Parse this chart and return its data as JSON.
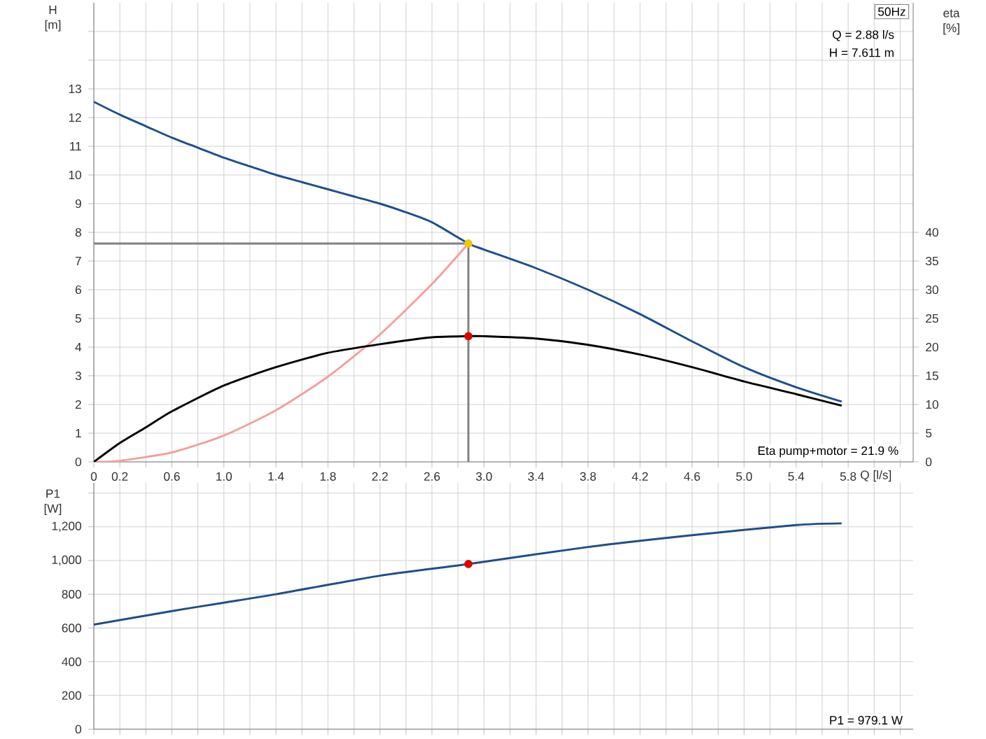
{
  "chart_data": [
    {
      "type": "line",
      "xlabel": "Q [l/s]",
      "ylabel": "H [m]",
      "y2label": "eta [%]",
      "xlim": [
        0,
        6.3
      ],
      "ylim": [
        0,
        16
      ],
      "y2lim": [
        0,
        80
      ],
      "xticks": [
        0,
        0.2,
        {
          "value": 0.4,
          "label": null
        },
        {
          "value": 0.6,
          "label": "0.6"
        },
        {
          "value": 0.8,
          "label": null
        },
        {
          "value": 1.0,
          "label": "1.0"
        },
        {
          "value": 1.2,
          "label": null
        },
        {
          "value": 1.4,
          "label": "1.4"
        },
        {
          "value": 1.6,
          "label": null
        },
        {
          "value": 1.8,
          "label": "1.8"
        },
        {
          "value": 2.0,
          "label": null
        },
        {
          "value": 2.2,
          "label": "2.2"
        },
        {
          "value": 2.4,
          "label": null
        },
        {
          "value": 2.6,
          "label": "2.6"
        },
        {
          "value": 2.8,
          "label": null
        },
        {
          "value": 3.0,
          "label": "3.0"
        },
        {
          "value": 3.2,
          "label": null
        },
        {
          "value": 3.4,
          "label": "3.4"
        },
        {
          "value": 3.6,
          "label": null
        },
        {
          "value": 3.8,
          "label": "3.8"
        },
        {
          "value": 4.0,
          "label": null
        },
        {
          "value": 4.2,
          "label": "4.2"
        },
        {
          "value": 4.4,
          "label": null
        },
        {
          "value": 4.6,
          "label": "4.6"
        },
        {
          "value": 4.8,
          "label": null
        },
        {
          "value": 5.0,
          "label": "5.0"
        },
        {
          "value": 5.2,
          "label": null
        },
        {
          "value": 5.4,
          "label": "5.4"
        },
        {
          "value": 5.6,
          "label": null
        },
        {
          "value": 5.8,
          "label": "5.8"
        },
        {
          "value": 6.0,
          "label": null
        },
        {
          "value": 6.2,
          "label": null
        }
      ],
      "yticks": [
        0,
        1,
        2,
        3,
        4,
        5,
        6,
        7,
        8,
        9,
        10,
        11,
        12,
        13,
        {
          "value": 14,
          "label": null
        },
        {
          "value": 15,
          "label": null
        }
      ],
      "y2ticks": [
        0,
        5,
        10,
        15,
        20,
        25,
        30,
        35,
        40
      ],
      "grid": true,
      "annotations": [
        "50Hz",
        "Q = 2.88 l/s",
        "H = 7.611 m",
        "Eta pump+motor = 21.9 %"
      ],
      "series": [
        {
          "color": "#1f4e8c",
          "x": [
            0,
            0.2,
            0.4,
            0.6,
            0.8,
            1.0,
            1.2,
            1.4,
            1.6,
            1.8,
            2.0,
            2.2,
            2.4,
            2.6,
            2.88,
            3.0,
            3.4,
            3.8,
            4.2,
            4.6,
            5.0,
            5.4,
            5.75
          ],
          "values": [
            12.55,
            12.1,
            11.7,
            11.3,
            10.95,
            10.6,
            10.3,
            10.0,
            9.75,
            9.5,
            9.25,
            9.0,
            8.7,
            8.35,
            7.611,
            7.4,
            6.75,
            6.0,
            5.15,
            4.2,
            3.3,
            2.6,
            2.1
          ]
        },
        {
          "axis": "y2",
          "color": "#000000",
          "x": [
            0,
            0.2,
            0.4,
            0.6,
            1.0,
            1.4,
            1.8,
            2.2,
            2.6,
            2.88,
            3.0,
            3.4,
            3.8,
            4.2,
            4.6,
            5.0,
            5.4,
            5.75
          ],
          "values": [
            0,
            3.3,
            6,
            8.8,
            13.3,
            16.5,
            19,
            20.5,
            21.7,
            21.9,
            21.9,
            21.5,
            20.4,
            18.7,
            16.5,
            14,
            11.8,
            9.8
          ]
        },
        {
          "color": "#f2a0a0",
          "x": [
            0,
            0.2,
            0.6,
            1.0,
            1.4,
            1.8,
            2.2,
            2.6,
            2.88
          ],
          "values": [
            0,
            0.04,
            0.33,
            0.92,
            1.8,
            2.97,
            4.44,
            6.2,
            7.611
          ]
        },
        {
          "color": "#808080",
          "x": [
            0,
            2.88,
            2.88
          ],
          "values": [
            7.611,
            7.611,
            0
          ]
        },
        {
          "type": "scatter",
          "marker": "circle",
          "color": "#f5c400",
          "x": [
            2.88
          ],
          "values": [
            7.611
          ]
        },
        {
          "type": "scatter",
          "marker": "circle",
          "axis": "y2",
          "color": "#e00000",
          "x": [
            2.88
          ],
          "values": [
            21.9
          ]
        }
      ]
    },
    {
      "type": "line",
      "ylabel": "P1 [W]",
      "xlim": [
        0,
        6.3
      ],
      "ylim": [
        0,
        1460
      ],
      "xticks": [
        {
          "value": 0,
          "label": null
        },
        {
          "value": 0.2,
          "label": null
        },
        {
          "value": 0.4,
          "label": null
        },
        {
          "value": 0.6,
          "label": null
        },
        {
          "value": 0.8,
          "label": null
        },
        {
          "value": 1.0,
          "label": null
        },
        {
          "value": 1.2,
          "label": null
        },
        {
          "value": 1.4,
          "label": null
        },
        {
          "value": 1.6,
          "label": null
        },
        {
          "value": 1.8,
          "label": null
        },
        {
          "value": 2.0,
          "label": null
        },
        {
          "value": 2.2,
          "label": null
        },
        {
          "value": 2.4,
          "label": null
        },
        {
          "value": 2.6,
          "label": null
        },
        {
          "value": 2.8,
          "label": null
        },
        {
          "value": 3.0,
          "label": null
        },
        {
          "value": 3.2,
          "label": null
        },
        {
          "value": 3.4,
          "label": null
        },
        {
          "value": 3.6,
          "label": null
        },
        {
          "value": 3.8,
          "label": null
        },
        {
          "value": 4.0,
          "label": null
        },
        {
          "value": 4.2,
          "label": null
        },
        {
          "value": 4.4,
          "label": null
        },
        {
          "value": 4.6,
          "label": null
        },
        {
          "value": 4.8,
          "label": null
        },
        {
          "value": 5.0,
          "label": null
        },
        {
          "value": 5.2,
          "label": null
        },
        {
          "value": 5.4,
          "label": null
        },
        {
          "value": 5.6,
          "label": null
        },
        {
          "value": 5.8,
          "label": null
        },
        {
          "value": 6.0,
          "label": null
        },
        {
          "value": 6.2,
          "label": null
        }
      ],
      "yticks": [
        0,
        200,
        400,
        600,
        800,
        {
          "value": 1000,
          "label": "1,000"
        },
        {
          "value": 1200,
          "label": "1,200"
        },
        {
          "value": 1400,
          "label": null
        }
      ],
      "grid": true,
      "tick_labels": "y",
      "annotations": [
        "P1 = 979.1 W"
      ],
      "series": [
        {
          "color": "#1f4e8c",
          "x": [
            0,
            0.6,
            1.0,
            1.4,
            2.2,
            2.88,
            3.8,
            4.6,
            5.4,
            5.75
          ],
          "values": [
            620,
            700,
            750,
            800,
            910,
            979.1,
            1080,
            1150,
            1210,
            1220
          ]
        },
        {
          "type": "scatter",
          "marker": "circle",
          "color": "#e00000",
          "x": [
            2.88
          ],
          "values": [
            979.1
          ]
        }
      ]
    }
  ]
}
